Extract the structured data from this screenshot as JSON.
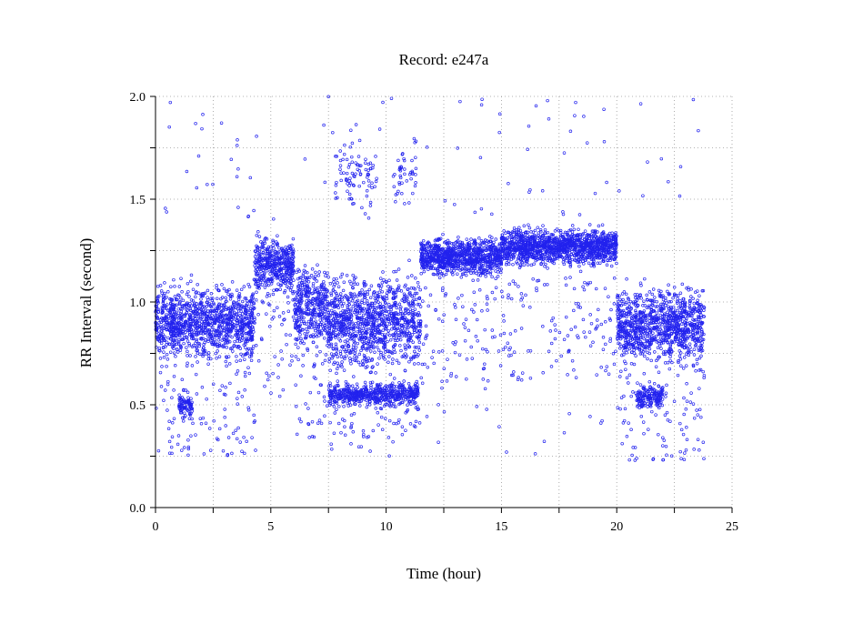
{
  "chart_data": {
    "type": "scatter",
    "title": "Record:  e247a",
    "xlabel": "Time (hour)",
    "ylabel": "RR Interval (second)",
    "xlim": [
      0,
      25
    ],
    "ylim": [
      0.0,
      2.0
    ],
    "xticks": [
      0,
      5,
      10,
      15,
      20,
      25
    ],
    "xtick_labels": [
      "0",
      "5",
      "10",
      "15",
      "20",
      "25"
    ],
    "yticks": [
      0.0,
      0.5,
      1.0,
      1.5,
      2.0
    ],
    "ytick_labels": [
      "0.0",
      "0.5",
      "1.0",
      "1.5",
      "2.0"
    ],
    "grid": true,
    "legend": "none",
    "marker_color": "#2222ee",
    "segments": [
      {
        "x_start": 0.0,
        "x_end": 4.3,
        "center": 0.9,
        "spread": 0.16
      },
      {
        "x_start": 4.3,
        "x_end": 6.0,
        "center": 1.18,
        "spread": 0.12
      },
      {
        "x_start": 6.0,
        "x_end": 7.5,
        "center": 0.98,
        "spread": 0.18
      },
      {
        "x_start": 7.5,
        "x_end": 11.5,
        "center": 0.9,
        "spread": 0.2
      },
      {
        "x_start": 11.5,
        "x_end": 15.0,
        "center": 1.22,
        "spread": 0.08
      },
      {
        "x_start": 15.0,
        "x_end": 20.0,
        "center": 1.27,
        "spread": 0.08
      },
      {
        "x_start": 20.0,
        "x_end": 23.8,
        "center": 0.88,
        "spread": 0.16
      }
    ],
    "low_clusters": [
      {
        "x_start": 1.0,
        "x_end": 1.6,
        "center": 0.5
      },
      {
        "x_start": 7.5,
        "x_end": 11.4,
        "center": 0.55
      },
      {
        "x_start": 20.8,
        "x_end": 22.0,
        "center": 0.54
      }
    ],
    "high_clusters": [
      {
        "x_start": 7.8,
        "x_end": 9.6,
        "center": 1.62
      },
      {
        "x_start": 10.3,
        "x_end": 11.3,
        "center": 1.62
      }
    ]
  }
}
